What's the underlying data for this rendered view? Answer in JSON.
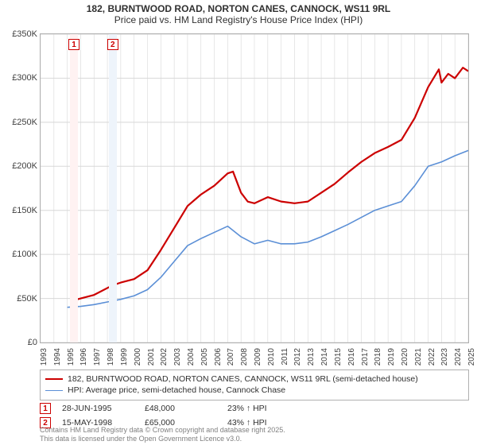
{
  "title_line1": "182, BURNTWOOD ROAD, NORTON CANES, CANNOCK, WS11 9RL",
  "title_line2": "Price paid vs. HM Land Registry's House Price Index (HPI)",
  "y_axis": {
    "min": 0,
    "max": 350000,
    "ticks": [
      0,
      50000,
      100000,
      150000,
      200000,
      250000,
      300000,
      350000
    ],
    "labels": [
      "£0",
      "£50K",
      "£100K",
      "£150K",
      "£200K",
      "£250K",
      "£300K",
      "£350K"
    ]
  },
  "x_axis": {
    "min": 1993,
    "max": 2025,
    "ticks": [
      1993,
      1994,
      1995,
      1996,
      1997,
      1998,
      1999,
      2000,
      2001,
      2002,
      2003,
      2004,
      2005,
      2006,
      2007,
      2008,
      2009,
      2010,
      2011,
      2012,
      2013,
      2014,
      2015,
      2016,
      2017,
      2018,
      2019,
      2020,
      2021,
      2022,
      2023,
      2024,
      2025
    ]
  },
  "bands": [
    {
      "from": 1995.2,
      "to": 1995.8,
      "color": "#fff2f2"
    },
    {
      "from": 1998.1,
      "to": 1998.7,
      "color": "#eef4fb"
    }
  ],
  "series": {
    "price": {
      "color": "#cc0000",
      "label": "182, BURNTWOOD ROAD, NORTON CANES, CANNOCK, WS11 9RL (semi-detached house)",
      "width": 2.2,
      "points": [
        [
          1995.5,
          48000
        ],
        [
          1996,
          50000
        ],
        [
          1997,
          54000
        ],
        [
          1998.4,
          65000
        ],
        [
          1999,
          68000
        ],
        [
          2000,
          72000
        ],
        [
          2001,
          82000
        ],
        [
          2002,
          105000
        ],
        [
          2003,
          130000
        ],
        [
          2004,
          155000
        ],
        [
          2005,
          168000
        ],
        [
          2006,
          178000
        ],
        [
          2007,
          192000
        ],
        [
          2007.4,
          194000
        ],
        [
          2007.8,
          178000
        ],
        [
          2008,
          170000
        ],
        [
          2008.5,
          160000
        ],
        [
          2009,
          158000
        ],
        [
          2010,
          165000
        ],
        [
          2011,
          160000
        ],
        [
          2012,
          158000
        ],
        [
          2013,
          160000
        ],
        [
          2014,
          170000
        ],
        [
          2015,
          180000
        ],
        [
          2016,
          193000
        ],
        [
          2017,
          205000
        ],
        [
          2018,
          215000
        ],
        [
          2019,
          222000
        ],
        [
          2020,
          230000
        ],
        [
          2021,
          255000
        ],
        [
          2022,
          290000
        ],
        [
          2022.8,
          310000
        ],
        [
          2023,
          295000
        ],
        [
          2023.5,
          305000
        ],
        [
          2024,
          300000
        ],
        [
          2024.6,
          312000
        ],
        [
          2025,
          308000
        ]
      ],
      "markers": [
        {
          "x": 1995.5,
          "y": 48000
        },
        {
          "x": 1998.4,
          "y": 65000
        }
      ]
    },
    "hpi": {
      "color": "#5b8fd6",
      "label": "HPI: Average price, semi-detached house, Cannock Chase",
      "width": 1.6,
      "points": [
        [
          1995,
          40000
        ],
        [
          1996,
          41000
        ],
        [
          1997,
          43000
        ],
        [
          1998,
          46000
        ],
        [
          1999,
          49000
        ],
        [
          2000,
          53000
        ],
        [
          2001,
          60000
        ],
        [
          2002,
          74000
        ],
        [
          2003,
          92000
        ],
        [
          2004,
          110000
        ],
        [
          2005,
          118000
        ],
        [
          2006,
          125000
        ],
        [
          2007,
          132000
        ],
        [
          2008,
          120000
        ],
        [
          2009,
          112000
        ],
        [
          2010,
          116000
        ],
        [
          2011,
          112000
        ],
        [
          2012,
          112000
        ],
        [
          2013,
          114000
        ],
        [
          2014,
          120000
        ],
        [
          2015,
          127000
        ],
        [
          2016,
          134000
        ],
        [
          2017,
          142000
        ],
        [
          2018,
          150000
        ],
        [
          2019,
          155000
        ],
        [
          2020,
          160000
        ],
        [
          2021,
          178000
        ],
        [
          2022,
          200000
        ],
        [
          2023,
          205000
        ],
        [
          2024,
          212000
        ],
        [
          2025,
          218000
        ]
      ]
    }
  },
  "chart_markers": [
    {
      "n": "1",
      "x": 1995.5,
      "color": "#cc0000"
    },
    {
      "n": "2",
      "x": 1998.4,
      "color": "#cc0000"
    }
  ],
  "transactions": [
    {
      "n": "1",
      "date": "28-JUN-1995",
      "price": "£48,000",
      "pct": "23% ↑ HPI",
      "color": "#cc0000"
    },
    {
      "n": "2",
      "date": "15-MAY-1998",
      "price": "£65,000",
      "pct": "43% ↑ HPI",
      "color": "#cc0000"
    }
  ],
  "footer1": "Contains HM Land Registry data © Crown copyright and database right 2025.",
  "footer2": "This data is licensed under the Open Government Licence v3.0.",
  "grid_color": "#d8d8d8",
  "title_fontsize": 12
}
